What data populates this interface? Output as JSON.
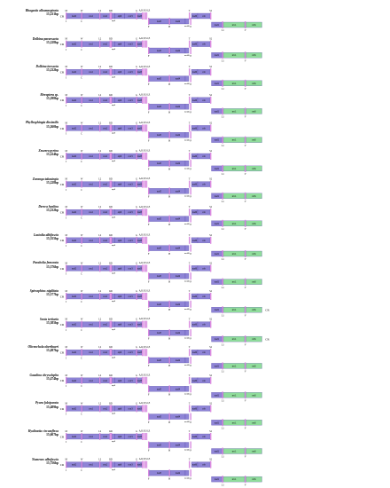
{
  "colors": {
    "protein": "#8e84d6",
    "trna": "#d98be0",
    "rrna": "#8fdc9b",
    "border": "#4b3fa0"
  },
  "genes": {
    "cox1": "cox1",
    "cox2": "cox2",
    "cox3": "cox3",
    "atp8": "atp8",
    "atp6": "atp6",
    "nad3": "nad3",
    "nad5": "nad5",
    "nad4": "nad4",
    "nad4L": "nad4L",
    "nad6": "nad6",
    "cob": "cob",
    "nad1": "nad1",
    "rrnL": "rrnL",
    "rrnS": "rrnS",
    "nad2": "nad2"
  },
  "trna_labels": {
    "I": "I",
    "Q": "Q",
    "M": "M",
    "W": "W",
    "C": "C",
    "Y": "Y",
    "L2": "L2",
    "K": "K",
    "D": "D",
    "G": "G",
    "ARNSEF": "A,R,N,S1,E",
    "F": "F",
    "H": "H",
    "T": "T",
    "P": "P",
    "S2": "S2",
    "L1": "L1",
    "V": "V"
  },
  "cr_label": "CR",
  "species": [
    {
      "name": "Rhagastis albomarginata",
      "length": "15,231bp"
    },
    {
      "name": "Dolbina paraexacta",
      "length": "15,228bp"
    },
    {
      "name": "Dolbina inexacta",
      "length": "15,232bp"
    },
    {
      "name": "Meroptera sp.",
      "length": "15,298bp"
    },
    {
      "name": "Phyllosphingia dissimilis",
      "length": "15,260bp"
    },
    {
      "name": "Zeuzera pyrina",
      "length": "15,224bp"
    },
    {
      "name": "Zuranga takasingia",
      "length": "15,228bp"
    },
    {
      "name": "Dereca hyalina",
      "length": "15,232bp"
    },
    {
      "name": "Lasiodia albifascia",
      "length": "15,355bp"
    },
    {
      "name": "Parabolia femorata",
      "length": "15,376bp"
    },
    {
      "name": "Spirosphinx nigilitata",
      "length": "15,377bp"
    },
    {
      "name": "Seota tertiaria",
      "length": "15,385bp"
    },
    {
      "name": "Olivenchola oberthueri",
      "length": "15,497bp"
    },
    {
      "name": "Gazalina chrysolopha",
      "length": "15,474bp"
    },
    {
      "name": "Pyura falciparata",
      "length": "15,489bp"
    },
    {
      "name": "Hyalinetta circumflexa",
      "length": "15,607bp"
    },
    {
      "name": "Numenes albofascia",
      "length": "15,756bp"
    }
  ]
}
